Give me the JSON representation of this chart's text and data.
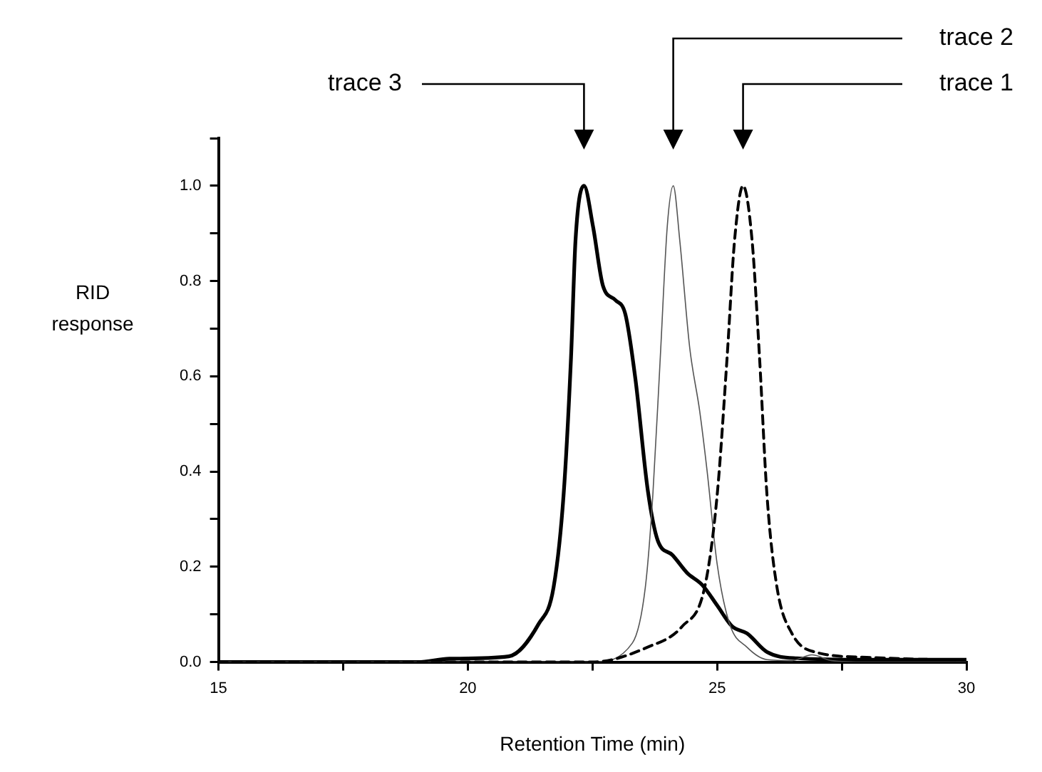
{
  "chart_data": {
    "type": "line",
    "xlabel": "Retention Time (min)",
    "ylabel": "RID response",
    "xlim": [
      15,
      30
    ],
    "xticks": [
      15,
      {
        "value": 17.5,
        "label": null
      },
      20,
      {
        "value": 22.5,
        "label": null
      },
      25,
      {
        "value": 27.5,
        "label": null
      },
      30
    ],
    "ylim": [
      0,
      1.1
    ],
    "yticks": [
      {
        "value": 0,
        "label": "0.0"
      },
      {
        "value": 0.1,
        "label": null
      },
      0.2,
      {
        "value": 0.3,
        "label": null
      },
      0.4,
      {
        "value": 0.5,
        "label": null
      },
      0.6,
      {
        "value": 0.7,
        "label": null
      },
      0.8,
      {
        "value": 0.9,
        "label": null
      },
      {
        "value": 1,
        "label": "1.0"
      },
      {
        "value": 1.1,
        "label": null
      }
    ],
    "grid": false,
    "legend": false,
    "marker": "none",
    "annotations": [
      "trace 1",
      "trace 2",
      "trace 3"
    ],
    "series": [
      {
        "color": "#000000",
        "line_style": "dashed",
        "x": [
          15,
          20,
          22.5,
          23.6,
          24.3,
          24.75,
          25.0,
          25.2,
          25.35,
          25.52,
          25.7,
          25.85,
          26.0,
          26.2,
          26.5,
          27.0,
          28.0,
          29.0,
          30.0
        ],
        "values": [
          0,
          0,
          0,
          0.031,
          0.075,
          0.157,
          0.35,
          0.64,
          0.886,
          1.0,
          0.886,
          0.64,
          0.35,
          0.157,
          0.06,
          0.02,
          0.01,
          0.006,
          0.005
        ]
      },
      {
        "color": "#555555",
        "line_style": "solid",
        "x": [
          15,
          20,
          22.5,
          23.3,
          23.56,
          23.71,
          23.86,
          24.0,
          24.12,
          24.25,
          24.45,
          24.65,
          24.8,
          25.0,
          25.25,
          25.6,
          26.0,
          26.5,
          26.9,
          27.3,
          28.0,
          30.0
        ],
        "values": [
          0,
          0,
          0,
          0.04,
          0.157,
          0.35,
          0.64,
          0.915,
          1.0,
          0.886,
          0.66,
          0.527,
          0.4,
          0.206,
          0.08,
          0.031,
          0.005,
          0.003,
          0.015,
          0.003,
          0,
          0
        ]
      },
      {
        "color": "#000000",
        "line_style": "solid",
        "x": [
          15,
          19.0,
          19.63,
          20.82,
          21.42,
          21.72,
          21.92,
          22.07,
          22.16,
          22.33,
          22.51,
          22.71,
          22.96,
          23.16,
          23.36,
          23.61,
          23.81,
          24.1,
          24.4,
          24.7,
          25.0,
          25.3,
          25.6,
          26.0,
          26.6,
          28.0,
          30.0
        ],
        "values": [
          0,
          0,
          0.007,
          0.012,
          0.08,
          0.157,
          0.35,
          0.64,
          0.886,
          1.0,
          0.915,
          0.79,
          0.76,
          0.73,
          0.595,
          0.36,
          0.255,
          0.225,
          0.187,
          0.162,
          0.119,
          0.075,
          0.06,
          0.021,
          0.008,
          0.005,
          0.005
        ]
      }
    ]
  }
}
